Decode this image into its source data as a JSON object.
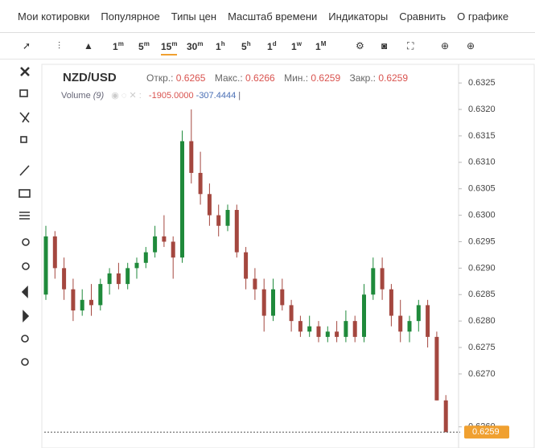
{
  "menu": [
    "Мои котировки",
    "Популярное",
    "Типы цен",
    "Масштаб времени",
    "Индикаторы",
    "Сравнить",
    "О графике"
  ],
  "toolbar": {
    "timeframes": [
      {
        "number": "1",
        "unit": "m"
      },
      {
        "number": "5",
        "unit": "m"
      },
      {
        "number": "15",
        "unit": "m"
      },
      {
        "number": "30",
        "unit": "m"
      },
      {
        "number": "1",
        "unit": "h"
      },
      {
        "number": "5",
        "unit": "h"
      },
      {
        "number": "1",
        "unit": "d"
      },
      {
        "number": "1",
        "unit": "w"
      },
      {
        "number": "1",
        "unit": "M"
      }
    ]
  },
  "header": {
    "symbol": "NZD/USD",
    "open_label": "Откр.:",
    "open": 0.6265,
    "high_label": "Макс.:",
    "high": 0.6266,
    "low_label": "Мин.:",
    "low": 0.6259,
    "close_label": "Закр.:",
    "close": 0.6259,
    "volume_label": "Volume",
    "volume_period": "(9)",
    "volume_values": [
      {
        "value": -1905,
        "label": "-1905.0000"
      },
      -307.4444
    ]
  },
  "chart_data": {
    "type": "candlestick",
    "up_color": "#1f8a3b",
    "down_color": "#a4473f",
    "last_price": 0.6259,
    "last_price_color": "#f0a030",
    "ylim": [
      0.6256,
      0.6327
    ],
    "yticks": [
      0.6325,
      {
        "value": 0.632,
        "label": "0.6320"
      },
      0.6315,
      {
        "value": 0.631,
        "label": "0.6310"
      },
      0.6305,
      {
        "value": 0.63,
        "label": "0.6300"
      },
      0.6295,
      {
        "value": 0.629,
        "label": "0.6290"
      },
      0.6285,
      {
        "value": 0.628,
        "label": "0.6280"
      },
      0.6275,
      {
        "value": 0.627,
        "label": "0.6270"
      },
      {
        "value": 0.626,
        "label": "0.6260"
      }
    ],
    "open": [
      0.6285,
      0.6296,
      0.629,
      0.6286,
      0.6282,
      0.6284,
      0.6283,
      0.6287,
      0.6289,
      0.6287,
      0.629,
      0.6291,
      0.6293,
      0.6296,
      0.6295,
      0.6292,
      0.6314,
      0.6308,
      0.6304,
      0.63,
      0.6298,
      0.6301,
      0.6293,
      0.6288,
      0.6286,
      0.6281,
      0.6286,
      0.6283,
      0.628,
      0.6278,
      0.6279,
      0.6277,
      0.6278,
      0.6277,
      0.628,
      0.6277,
      0.6285,
      0.629,
      0.6286,
      0.6281,
      0.6278,
      0.628,
      0.6283,
      0.6277,
      0.6265
    ],
    "high": [
      0.6298,
      0.6297,
      0.6292,
      0.6288,
      0.6286,
      0.6287,
      0.6288,
      0.629,
      0.6291,
      0.6291,
      0.6292,
      0.6294,
      0.6298,
      0.63,
      0.6296,
      0.6316,
      0.632,
      0.6312,
      0.6306,
      0.6302,
      0.6302,
      0.6302,
      0.6294,
      0.629,
      0.6288,
      0.6288,
      0.6288,
      0.6284,
      0.6281,
      0.6281,
      0.628,
      0.6279,
      0.628,
      0.6282,
      0.6281,
      0.6287,
      0.6292,
      0.6292,
      0.6287,
      0.6284,
      0.6281,
      0.6284,
      0.6284,
      0.6278,
      0.6266
    ],
    "low": [
      0.6284,
      0.6288,
      0.6284,
      0.628,
      0.6281,
      0.6281,
      0.6282,
      0.6285,
      0.6286,
      0.6286,
      0.6288,
      0.629,
      0.6292,
      0.6294,
      0.6288,
      0.6291,
      0.6306,
      0.6302,
      0.6298,
      0.6296,
      0.6297,
      0.6292,
      0.6286,
      0.6284,
      0.6278,
      0.628,
      0.6282,
      0.6278,
      0.6277,
      0.6277,
      0.6276,
      0.6276,
      0.6276,
      0.6276,
      0.6276,
      0.6276,
      0.6284,
      0.6284,
      0.6279,
      0.6276,
      0.6276,
      0.6278,
      0.6275,
      0.6265,
      0.6259
    ],
    "close": [
      0.6296,
      0.629,
      0.6286,
      0.6282,
      0.6284,
      0.6283,
      0.6287,
      0.6289,
      0.6287,
      0.629,
      0.6291,
      0.6293,
      0.6296,
      0.6295,
      0.6292,
      0.6314,
      0.6308,
      0.6304,
      0.63,
      0.6298,
      0.6301,
      0.6293,
      0.6288,
      0.6286,
      0.6281,
      0.6286,
      0.6283,
      0.628,
      0.6278,
      0.6279,
      0.6277,
      0.6278,
      0.6277,
      0.628,
      0.6277,
      0.6285,
      0.629,
      0.6286,
      0.6281,
      0.6278,
      0.628,
      0.6283,
      0.6277,
      0.6265,
      0.6259
    ]
  }
}
